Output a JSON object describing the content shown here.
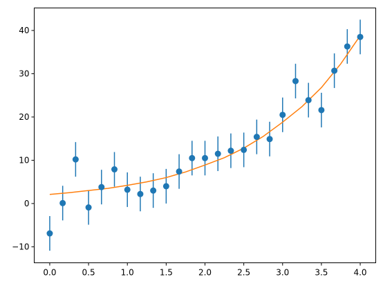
{
  "chart_data": {
    "type": "scatter",
    "title": "",
    "xlabel": "",
    "ylabel": "",
    "xlim": [
      -0.2,
      4.2
    ],
    "ylim": [
      -13.7,
      45.2
    ],
    "grid": false,
    "x_ticks": [
      0.0,
      0.5,
      1.0,
      1.5,
      2.0,
      2.5,
      3.0,
      3.5,
      4.0
    ],
    "x_tick_labels": [
      "0.0",
      "0.5",
      "1.0",
      "1.5",
      "2.0",
      "2.5",
      "3.0",
      "3.5",
      "4.0"
    ],
    "y_ticks": [
      -10,
      0,
      10,
      20,
      30,
      40
    ],
    "y_tick_labels": [
      "−10",
      "0",
      "10",
      "20",
      "30",
      "40"
    ],
    "series": [
      {
        "type": "errorbar-scatter",
        "color": "#1f77b4",
        "x": [
          0.0,
          0.1667,
          0.3333,
          0.5,
          0.6667,
          0.8333,
          1.0,
          1.1667,
          1.3333,
          1.5,
          1.6667,
          1.8333,
          2.0,
          2.1667,
          2.3333,
          2.5,
          2.6667,
          2.8333,
          3.0,
          3.1667,
          3.3333,
          3.5,
          3.6667,
          3.8333,
          4.0
        ],
        "y": [
          -6.9,
          0.1,
          10.2,
          -0.9,
          3.8,
          7.9,
          3.2,
          2.2,
          3.0,
          4.0,
          7.4,
          10.5,
          10.5,
          11.5,
          12.2,
          12.4,
          15.4,
          14.9,
          20.5,
          28.3,
          23.9,
          21.6,
          30.7,
          36.3,
          38.5
        ],
        "yerr": 4.0
      },
      {
        "type": "line",
        "color": "#ff7f0e",
        "x": [
          0.0,
          0.25,
          0.5,
          0.75,
          1.0,
          1.25,
          1.5,
          1.75,
          2.0,
          2.25,
          2.5,
          2.75,
          3.0,
          3.25,
          3.5,
          3.75,
          4.0
        ],
        "y": [
          2.1,
          2.5,
          3.0,
          3.5,
          4.2,
          5.0,
          6.0,
          7.3,
          8.9,
          10.6,
          12.8,
          15.5,
          18.8,
          22.4,
          26.8,
          32.3,
          38.8
        ]
      }
    ]
  }
}
